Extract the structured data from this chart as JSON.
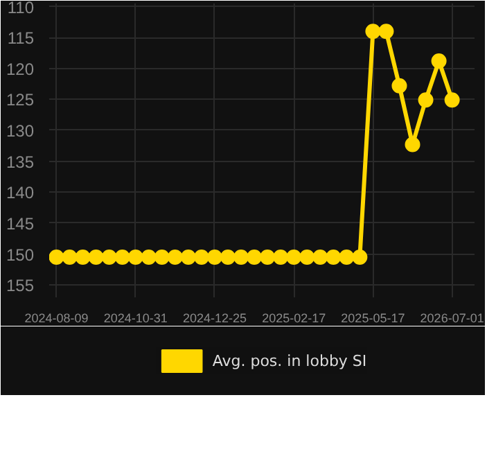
{
  "chart_data": {
    "type": "line",
    "categories": [
      "2024-08-09",
      null,
      null,
      null,
      null,
      null,
      "2024-10-31",
      null,
      null,
      null,
      null,
      null,
      "2024-12-25",
      null,
      null,
      null,
      null,
      null,
      "2025-02-17",
      null,
      null,
      null,
      null,
      null,
      "2025-05-17",
      null,
      null,
      null,
      null,
      null,
      "2026-07-01"
    ],
    "series": [
      {
        "name": "Avg. pos. in lobby SI",
        "color": "#ffd700",
        "values": [
          150.5,
          150.5,
          150.5,
          150.5,
          150.5,
          150.5,
          150.5,
          150.5,
          150.5,
          150.5,
          150.5,
          150.5,
          150.5,
          150.5,
          150.5,
          150.5,
          150.5,
          150.5,
          150.5,
          150.5,
          150.5,
          150.5,
          150.5,
          150.5,
          114,
          114,
          122.8,
          132.3,
          125.1,
          118.8,
          125.1
        ]
      }
    ],
    "ylim": [
      157,
      109.5
    ],
    "yticks": [
      110,
      115,
      120,
      125,
      130,
      135,
      140,
      145,
      150,
      155
    ],
    "grid": true,
    "legend": "bottom",
    "marker": "circle",
    "line_style": "solid"
  }
}
